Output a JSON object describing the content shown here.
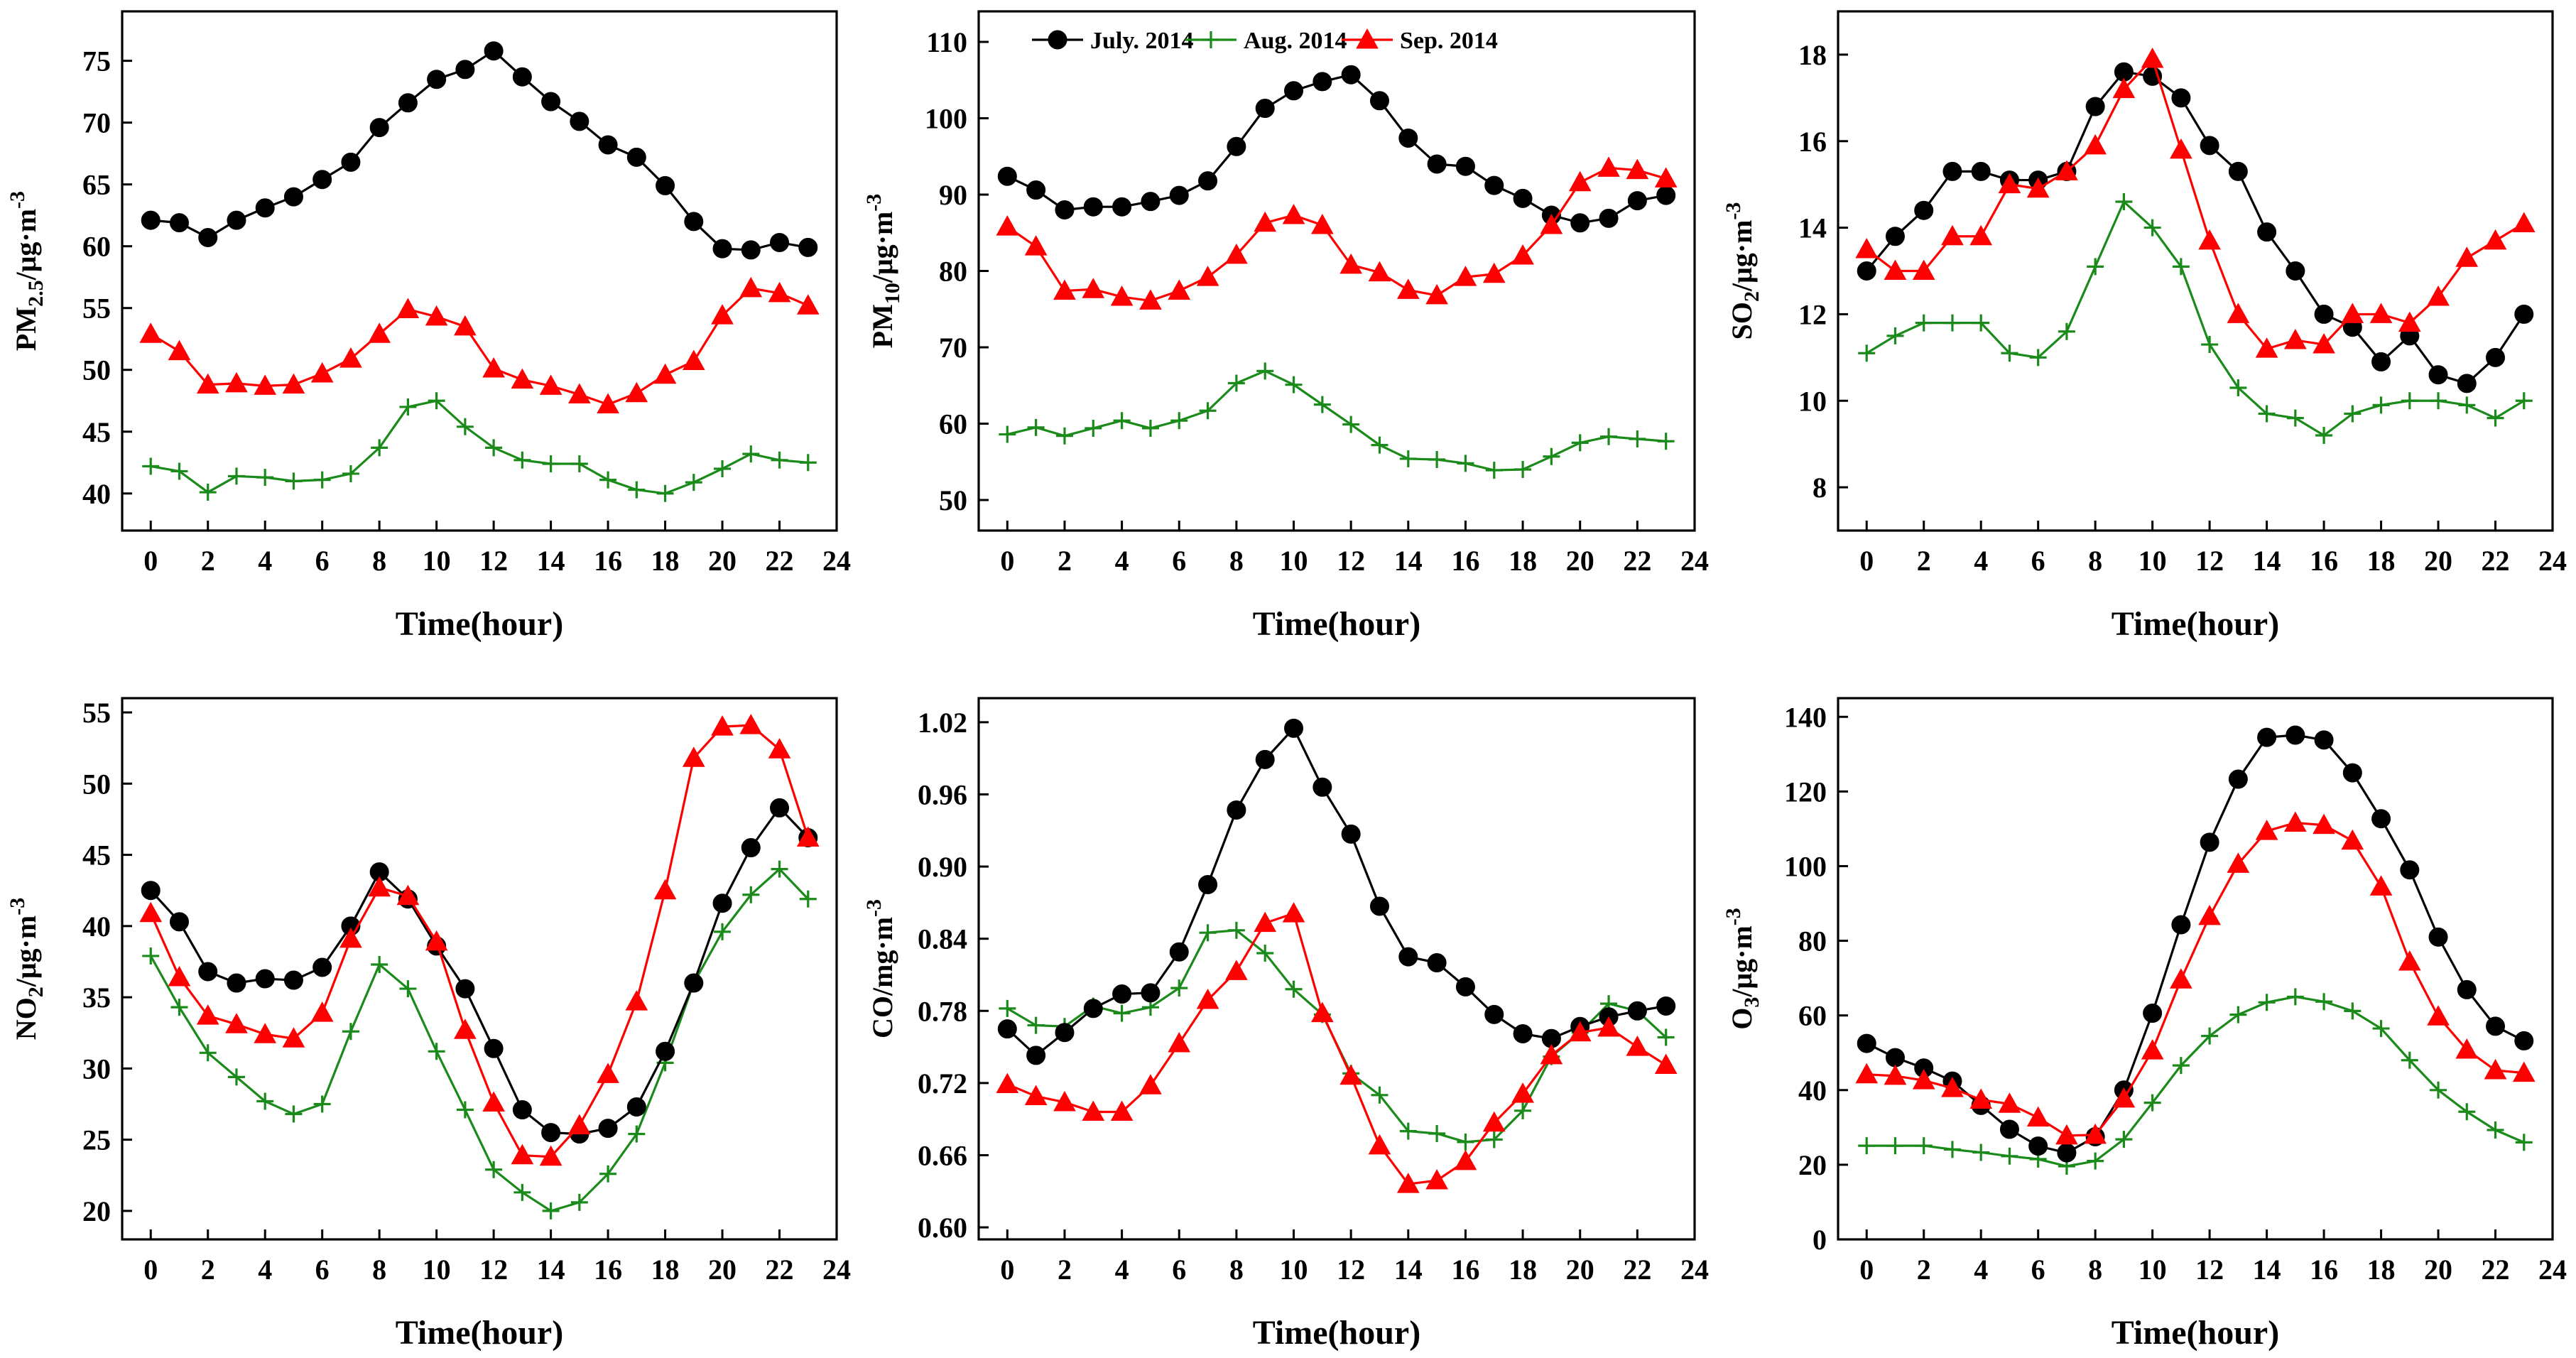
{
  "series_legend": [
    {
      "name": "July. 2014",
      "color": "#000000",
      "marker": "circle"
    },
    {
      "name": "Aug. 2014",
      "color": "#1a8a1a",
      "marker": "plus"
    },
    {
      "name": "Sep. 2014",
      "color": "#ff0000",
      "marker": "triangle"
    }
  ],
  "chart_data": [
    {
      "type": "line",
      "ylabel_main": "PM",
      "ylabel_sub": "2.5",
      "ylabel_rest": "/μg·m",
      "ylabel_sup": "-3",
      "xlabel": "Time(hour)",
      "xlim": [
        -1,
        24
      ],
      "ylim": [
        37,
        79
      ],
      "xticks": [
        0,
        2,
        4,
        6,
        8,
        10,
        12,
        14,
        16,
        18,
        20,
        22,
        24
      ],
      "yticks": [
        40,
        45,
        50,
        55,
        60,
        65,
        70,
        75
      ],
      "x": [
        0,
        1,
        2,
        3,
        4,
        5,
        6,
        7,
        8,
        9,
        10,
        11,
        12,
        13,
        14,
        15,
        16,
        17,
        18,
        19,
        20,
        21,
        22,
        23
      ],
      "series": [
        {
          "name": "July. 2014",
          "values": [
            62.1,
            61.9,
            60.7,
            62.1,
            63.1,
            64.0,
            65.4,
            66.8,
            69.6,
            71.6,
            73.5,
            74.3,
            75.8,
            73.7,
            71.7,
            70.1,
            68.2,
            67.2,
            64.9,
            62.0,
            59.8,
            59.7,
            60.3,
            59.9
          ]
        },
        {
          "name": "Aug. 2014",
          "values": [
            42.2,
            41.8,
            40.1,
            41.4,
            41.3,
            41.0,
            41.1,
            41.6,
            43.7,
            47.0,
            47.5,
            45.4,
            43.7,
            42.7,
            42.4,
            42.4,
            41.1,
            40.3,
            40.0,
            40.9,
            42.0,
            43.2,
            42.7,
            42.5
          ]
        },
        {
          "name": "Sep. 2014",
          "values": [
            52.9,
            51.5,
            48.8,
            48.9,
            48.7,
            48.8,
            49.7,
            50.9,
            52.9,
            54.9,
            54.3,
            53.5,
            50.1,
            49.2,
            48.7,
            48.0,
            47.2,
            48.1,
            49.6,
            50.7,
            54.4,
            56.6,
            56.2,
            55.2
          ]
        }
      ]
    },
    {
      "type": "line",
      "ylabel_main": "PM",
      "ylabel_sub": "10",
      "ylabel_rest": "/μg·m",
      "ylabel_sup": "-3",
      "xlabel": "Time(hour)",
      "xlim": [
        -1,
        24
      ],
      "ylim": [
        46,
        114
      ],
      "xticks": [
        0,
        2,
        4,
        6,
        8,
        10,
        12,
        14,
        16,
        18,
        20,
        22,
        24
      ],
      "yticks": [
        50,
        60,
        70,
        80,
        90,
        100,
        110
      ],
      "x": [
        0,
        1,
        2,
        3,
        4,
        5,
        6,
        7,
        8,
        9,
        10,
        11,
        12,
        13,
        14,
        15,
        16,
        17,
        18,
        19,
        20,
        21,
        22,
        23
      ],
      "series": [
        {
          "name": "July. 2014",
          "values": [
            92.4,
            90.6,
            88.0,
            88.4,
            88.4,
            89.1,
            89.9,
            91.8,
            96.3,
            101.3,
            103.6,
            104.8,
            105.7,
            102.3,
            97.4,
            94.0,
            93.7,
            91.2,
            89.5,
            87.3,
            86.3,
            86.9,
            89.2,
            89.9
          ]
        },
        {
          "name": "Aug. 2014",
          "values": [
            58.6,
            59.5,
            58.4,
            59.4,
            60.4,
            59.4,
            60.4,
            61.7,
            65.3,
            66.9,
            65.1,
            62.5,
            59.9,
            57.2,
            55.4,
            55.3,
            54.8,
            53.9,
            54.0,
            55.7,
            57.5,
            58.3,
            58.0,
            57.7
          ]
        },
        {
          "name": "Sep. 2014",
          "values": [
            85.8,
            83.2,
            77.4,
            77.6,
            76.6,
            76.1,
            77.4,
            79.2,
            82.1,
            86.3,
            87.3,
            86.0,
            80.8,
            79.8,
            77.5,
            76.8,
            79.2,
            79.6,
            82.0,
            86.0,
            91.6,
            93.5,
            93.2,
            92.1
          ]
        }
      ]
    },
    {
      "type": "line",
      "ylabel_main": "SO",
      "ylabel_sub": "2",
      "ylabel_rest": "/μg·m",
      "ylabel_sup": "-3",
      "xlabel": "Time(hour)",
      "xlim": [
        -1,
        24
      ],
      "ylim": [
        7,
        19
      ],
      "xticks": [
        0,
        2,
        4,
        6,
        8,
        10,
        12,
        14,
        16,
        18,
        20,
        22,
        24
      ],
      "yticks": [
        8,
        10,
        12,
        14,
        16,
        18
      ],
      "x": [
        0,
        1,
        2,
        3,
        4,
        5,
        6,
        7,
        8,
        9,
        10,
        11,
        12,
        13,
        14,
        15,
        16,
        17,
        18,
        19,
        20,
        21,
        22,
        23
      ],
      "series": [
        {
          "name": "July. 2014",
          "values": [
            13.0,
            13.8,
            14.4,
            15.3,
            15.3,
            15.1,
            15.1,
            15.3,
            16.8,
            17.6,
            17.5,
            17.0,
            15.9,
            15.3,
            13.9,
            13.0,
            12.0,
            11.7,
            10.9,
            11.5,
            10.6,
            10.4,
            11.0,
            12.0
          ]
        },
        {
          "name": "Aug. 2014",
          "values": [
            11.1,
            11.5,
            11.8,
            11.8,
            11.8,
            11.1,
            11.0,
            11.6,
            13.1,
            14.6,
            14.0,
            13.1,
            11.3,
            10.3,
            9.7,
            9.6,
            9.2,
            9.7,
            9.9,
            10.0,
            10.0,
            9.9,
            9.6,
            10.0
          ]
        },
        {
          "name": "Sep. 2014",
          "values": [
            13.5,
            13.0,
            13.0,
            13.8,
            13.8,
            15.0,
            14.9,
            15.3,
            15.9,
            17.2,
            17.9,
            15.8,
            13.7,
            12.0,
            11.2,
            11.4,
            11.3,
            12.0,
            12.0,
            11.8,
            12.4,
            13.3,
            13.7,
            14.1
          ]
        }
      ]
    },
    {
      "type": "line",
      "ylabel_main": "NO",
      "ylabel_sub": "2",
      "ylabel_rest": "/μg·m",
      "ylabel_sup": "-3",
      "xlabel": "Time(hour)",
      "xlim": [
        -1,
        24
      ],
      "ylim": [
        18,
        56
      ],
      "xticks": [
        0,
        2,
        4,
        6,
        8,
        10,
        12,
        14,
        16,
        18,
        20,
        22,
        24
      ],
      "yticks": [
        20,
        25,
        30,
        35,
        40,
        45,
        50,
        55
      ],
      "x": [
        0,
        1,
        2,
        3,
        4,
        5,
        6,
        7,
        8,
        9,
        10,
        11,
        12,
        13,
        14,
        15,
        16,
        17,
        18,
        19,
        20,
        21,
        22,
        23
      ],
      "series": [
        {
          "name": "July. 2014",
          "values": [
            42.5,
            40.3,
            36.8,
            36.0,
            36.3,
            36.2,
            37.1,
            40.0,
            43.8,
            41.9,
            38.6,
            35.6,
            31.4,
            27.1,
            25.5,
            25.4,
            25.8,
            27.3,
            31.2,
            36.0,
            41.6,
            45.5,
            48.3,
            46.2
          ]
        },
        {
          "name": "Aug. 2014",
          "values": [
            37.9,
            34.3,
            31.1,
            29.4,
            27.7,
            26.8,
            27.5,
            32.6,
            37.3,
            35.6,
            31.2,
            27.1,
            22.9,
            21.3,
            20.0,
            20.6,
            22.6,
            25.4,
            30.4,
            36.0,
            39.6,
            42.2,
            44.0,
            41.9
          ]
        },
        {
          "name": "Sep. 2014",
          "values": [
            40.9,
            36.4,
            33.7,
            33.1,
            32.4,
            32.1,
            33.9,
            39.1,
            42.7,
            42.1,
            38.9,
            32.7,
            27.6,
            23.9,
            23.8,
            26.0,
            29.6,
            34.7,
            42.5,
            51.8,
            54.0,
            54.1,
            52.4,
            46.2
          ]
        }
      ]
    },
    {
      "type": "line",
      "ylabel_main": "CO/mg·m",
      "ylabel_sub": "",
      "ylabel_rest": "",
      "ylabel_sup": "-3",
      "xlabel": "Time(hour)",
      "xlim": [
        -1,
        24
      ],
      "ylim": [
        0.59,
        1.04
      ],
      "xticks": [
        0,
        2,
        4,
        6,
        8,
        10,
        12,
        14,
        16,
        18,
        20,
        22,
        24
      ],
      "yticks": [
        0.6,
        0.66,
        0.72,
        0.78,
        0.84,
        0.9,
        0.96,
        1.02
      ],
      "ytick_labels": [
        "0.60",
        "0.66",
        "0.72",
        "0.78",
        "0.84",
        "0.90",
        "0.96",
        "1.02"
      ],
      "x": [
        0,
        1,
        2,
        3,
        4,
        5,
        6,
        7,
        8,
        9,
        10,
        11,
        12,
        13,
        14,
        15,
        16,
        17,
        18,
        19,
        20,
        21,
        22,
        23
      ],
      "series": [
        {
          "name": "July. 2014",
          "values": [
            0.765,
            0.743,
            0.762,
            0.782,
            0.794,
            0.795,
            0.829,
            0.885,
            0.947,
            0.989,
            1.015,
            0.966,
            0.927,
            0.867,
            0.825,
            0.82,
            0.8,
            0.777,
            0.761,
            0.757,
            0.767,
            0.775,
            0.78,
            0.784
          ]
        },
        {
          "name": "Aug. 2014",
          "values": [
            0.782,
            0.768,
            0.767,
            0.784,
            0.778,
            0.783,
            0.799,
            0.845,
            0.847,
            0.828,
            0.798,
            0.777,
            0.728,
            0.71,
            0.68,
            0.678,
            0.671,
            0.673,
            0.697,
            0.742,
            0.762,
            0.786,
            0.78,
            0.758
          ]
        },
        {
          "name": "Sep. 2014",
          "values": [
            0.719,
            0.709,
            0.704,
            0.696,
            0.696,
            0.718,
            0.753,
            0.789,
            0.813,
            0.853,
            0.861,
            0.778,
            0.726,
            0.668,
            0.636,
            0.639,
            0.655,
            0.687,
            0.711,
            0.743,
            0.762,
            0.766,
            0.75,
            0.735
          ]
        }
      ]
    },
    {
      "type": "line",
      "ylabel_main": "O",
      "ylabel_sub": "3",
      "ylabel_rest": "/μg·m",
      "ylabel_sup": "-3",
      "xlabel": "Time(hour)",
      "xlim": [
        -1,
        24
      ],
      "ylim": [
        0,
        145
      ],
      "xticks": [
        0,
        2,
        4,
        6,
        8,
        10,
        12,
        14,
        16,
        18,
        20,
        22,
        24
      ],
      "yticks": [
        0,
        20,
        40,
        60,
        80,
        100,
        120,
        140
      ],
      "x": [
        0,
        1,
        2,
        3,
        4,
        5,
        6,
        7,
        8,
        9,
        10,
        11,
        12,
        13,
        14,
        15,
        16,
        17,
        18,
        19,
        20,
        21,
        22,
        23
      ],
      "series": [
        {
          "name": "July. 2014",
          "values": [
            52.5,
            48.7,
            45.9,
            42.4,
            35.9,
            29.5,
            25.0,
            23.2,
            27.5,
            40.0,
            60.6,
            84.3,
            106.4,
            123.3,
            134.5,
            135.1,
            133.8,
            125.0,
            112.7,
            99.0,
            81.0,
            66.9,
            57.1,
            53.2
          ]
        },
        {
          "name": "Aug. 2014",
          "values": [
            25.1,
            25.1,
            25.1,
            24.1,
            23.3,
            22.3,
            21.5,
            19.6,
            21.0,
            26.8,
            36.6,
            46.6,
            54.5,
            60.2,
            63.5,
            65.0,
            63.7,
            61.2,
            56.5,
            48.0,
            40.0,
            34.2,
            29.3,
            26.0
          ]
        },
        {
          "name": "Sep. 2014",
          "values": [
            44.2,
            43.8,
            42.6,
            40.5,
            37.4,
            36.3,
            32.6,
            27.8,
            28.0,
            37.7,
            50.6,
            69.6,
            86.6,
            100.6,
            109.4,
            111.6,
            111.0,
            106.8,
            94.5,
            74.4,
            59.7,
            50.8,
            45.3,
            44.6
          ]
        }
      ]
    }
  ]
}
